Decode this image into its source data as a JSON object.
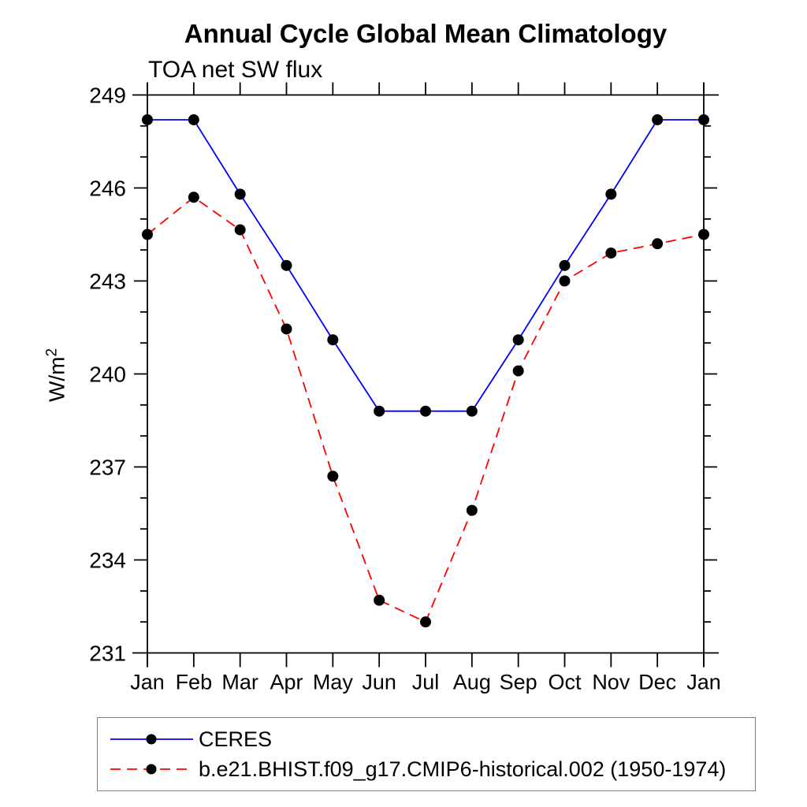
{
  "page": {
    "background": "#ffffff"
  },
  "chart_data": {
    "type": "line",
    "title": "Annual Cycle Global Mean Climatology",
    "subtitle": "TOA net SW flux",
    "xlabel": "",
    "ylabel_base": "W/m",
    "ylabel_exponent": "2",
    "categories": [
      "Jan",
      "Feb",
      "Mar",
      "Apr",
      "May",
      "Jun",
      "Jul",
      "Aug",
      "Sep",
      "Oct",
      "Nov",
      "Dec",
      "Jan"
    ],
    "ylim": [
      231,
      249
    ],
    "ytick_major_step": 3,
    "ytick_minor_step": 1,
    "ytick_labels": [
      "231",
      "234",
      "237",
      "240",
      "243",
      "246",
      "249"
    ],
    "grid": false,
    "legend_position": "bottom-left-box",
    "axis_color": "#000000",
    "series": [
      {
        "name": "CERES",
        "color": "#0000ff",
        "line_style": "solid",
        "marker": "filled-circle",
        "marker_color": "#000000",
        "values": [
          248.2,
          248.2,
          245.8,
          243.5,
          241.1,
          238.8,
          238.8,
          238.8,
          241.1,
          243.5,
          245.8,
          248.2,
          248.2
        ]
      },
      {
        "name": "b.e21.BHIST.f09_g17.CMIP6-historical.002 (1950-1974)",
        "color": "#ff0000",
        "line_style": "dashed",
        "marker": "filled-circle",
        "marker_color": "#000000",
        "values": [
          244.5,
          245.7,
          244.65,
          241.45,
          236.7,
          232.7,
          232.0,
          235.6,
          240.1,
          243.0,
          243.9,
          244.2,
          244.5
        ]
      }
    ]
  }
}
